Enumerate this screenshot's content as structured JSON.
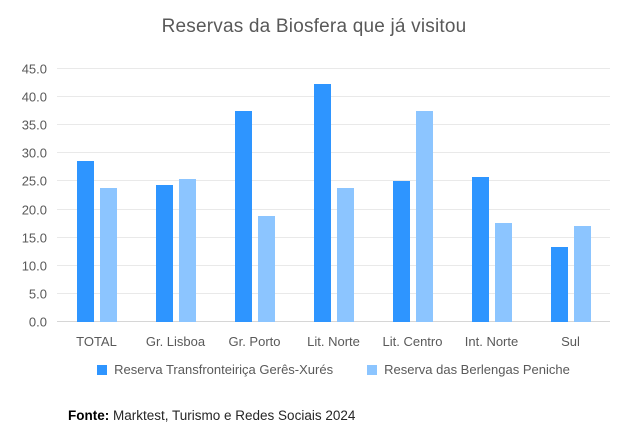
{
  "title": "Reservas da Biosfera que já visitou",
  "footer": {
    "label": "Fonte:",
    "text": " Marktest, Turismo e Redes Sociais 2024"
  },
  "colors": {
    "series1": "#2E95FF",
    "series2": "#8CC5FF",
    "gridline": "#E9E9E9",
    "axis_line": "#D6D6D6",
    "text_gray": "#595959"
  },
  "chart_data": {
    "type": "bar",
    "title": "Reservas da Biosfera que já visitou",
    "categories": [
      "TOTAL",
      "Gr. Lisboa",
      "Gr. Porto",
      "Lit. Norte",
      "Lit. Centro",
      "Int. Norte",
      "Sul"
    ],
    "series": [
      {
        "name": "Reserva Transfronteiriça Gerês-Xurés",
        "color": "#2E95FF",
        "values": [
          28.7,
          24.4,
          37.5,
          42.4,
          25.0,
          25.8,
          13.3
        ]
      },
      {
        "name": "Reserva das Berlengas Peniche",
        "color": "#8CC5FF",
        "values": [
          23.8,
          25.4,
          18.8,
          23.8,
          37.5,
          17.6,
          17.0
        ]
      }
    ],
    "xlabel": "",
    "ylabel": "",
    "ylim": [
      0,
      45
    ],
    "ytick_step": 5,
    "ytick_format": "one_decimal",
    "grid": true,
    "legend_position": "bottom",
    "source_note": "Fonte: Marktest, Turismo e Redes Sociais 2024"
  }
}
